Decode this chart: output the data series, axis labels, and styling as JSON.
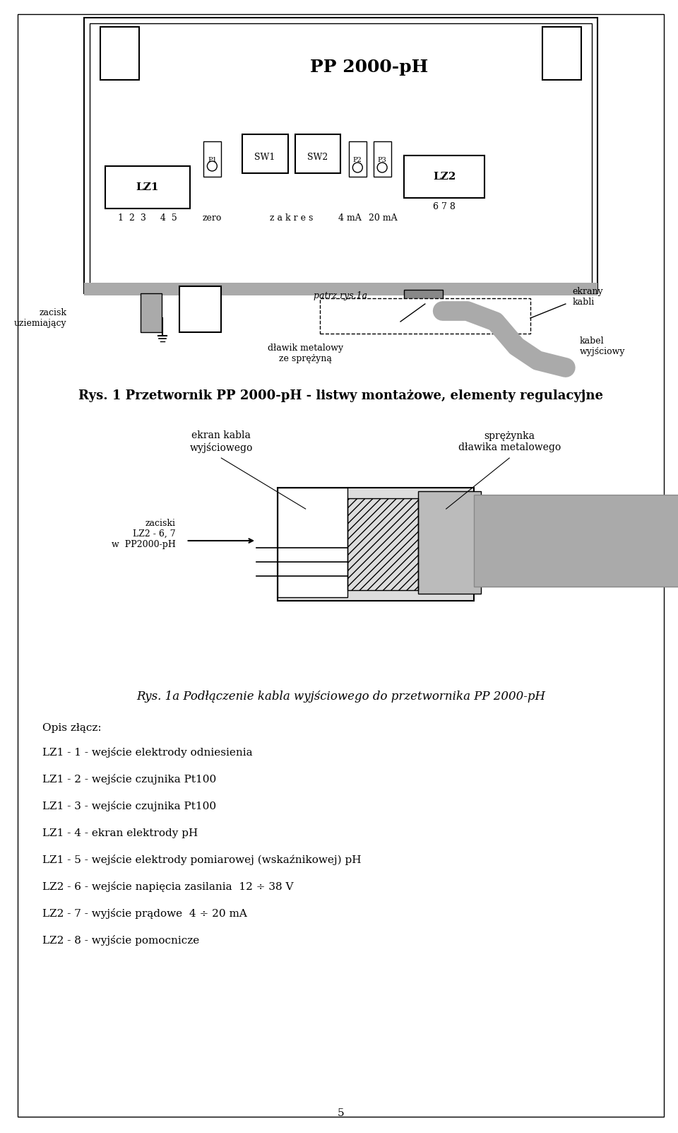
{
  "bg_color": "#ffffff",
  "fig_width": 9.6,
  "fig_height": 16.03,
  "title_device": "PP 2000-pH",
  "caption1": "Rys. 1 Przetwornik PP 2000-pH - listwy montażowe, elementy regulacyjne",
  "caption2": "Rys. 1a Podłączenie kabla wyjściowego do przetwornika PP 2000-pH",
  "label_ekrany_kabli": "ekrany\nkabli",
  "label_zacisk": "zacisk\nuziemiający",
  "label_patrz": "patrz rys.1a",
  "label_dlawik": "dławik metalowy\nze sprężyną",
  "label_kabel": "kabel\nwyjściowy",
  "label_ekran_kabla": "ekran kabla\nwyjściowego",
  "label_sprezyna": "sprężynka\ndławika metalowego",
  "label_zaciski": "zaciski\nLZ2 - 6, 7\nw  PP2000-pH",
  "opis_zlącz": "Opis złącz:",
  "lz_lines": [
    "LZ1 - 1 - wejście elektrody odniesienia",
    "LZ1 - 2 - wejście czujnika Pt100",
    "LZ1 - 3 - wejście czujnika Pt100",
    "LZ1 - 4 - ekran elektrody pH",
    "LZ1 - 5 - wejście elektrody pomiarowej (wskaźnikowej) pH",
    "LZ2 - 6 - wejście napięcia zasilania  12 ÷ 38 V",
    "LZ2 - 7 - wyjście prądowe  4 ÷ 20 mA",
    "LZ2 - 8 - wyjście pomocnicze"
  ],
  "page_number": "5",
  "text_lz1": "LZ1",
  "text_lz2": "LZ2",
  "text_p1": "P1",
  "text_p2": "P2",
  "text_p3": "P3",
  "text_sw1": "SW1",
  "text_sw2": "SW2",
  "text_nums": "1  2  3     4  5",
  "text_zero": "zero",
  "text_zakres": "z a k r e s",
  "text_4ma": "4 mA",
  "text_20ma": "20 mA",
  "text_678": "6 7 8"
}
